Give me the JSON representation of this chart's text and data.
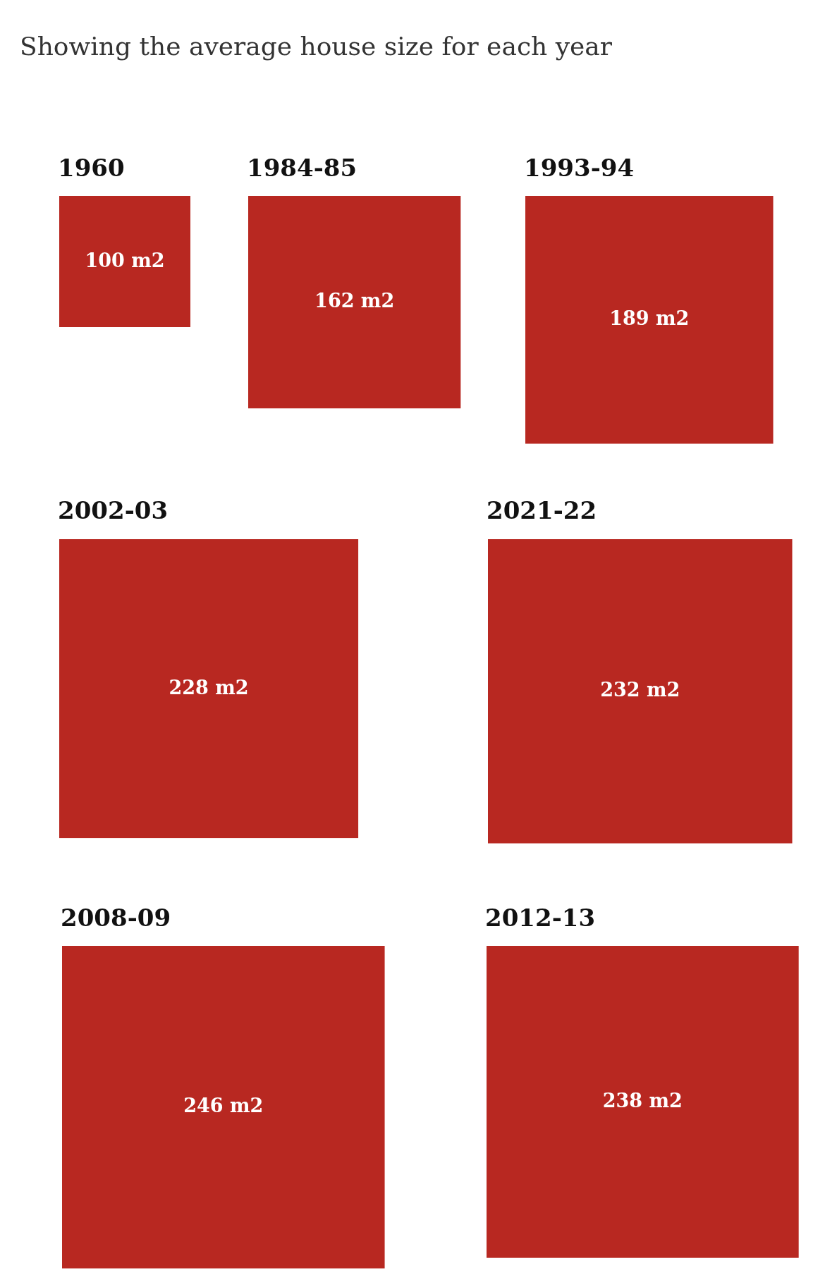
{
  "chart_data": {
    "type": "other",
    "title": "Showing the average house size for each year",
    "categories": [
      "1960",
      "1984-85",
      "1993-94",
      "2002-03",
      "2021-22",
      "2008-09",
      "2012-13"
    ],
    "values": [
      100,
      162,
      189,
      228,
      232,
      246,
      238
    ],
    "value_labels": [
      "100 m2",
      "162 m2",
      "189 m2",
      "228 m2",
      "232 m2",
      "246 m2",
      "238 m2"
    ],
    "color": "#b82821"
  }
}
